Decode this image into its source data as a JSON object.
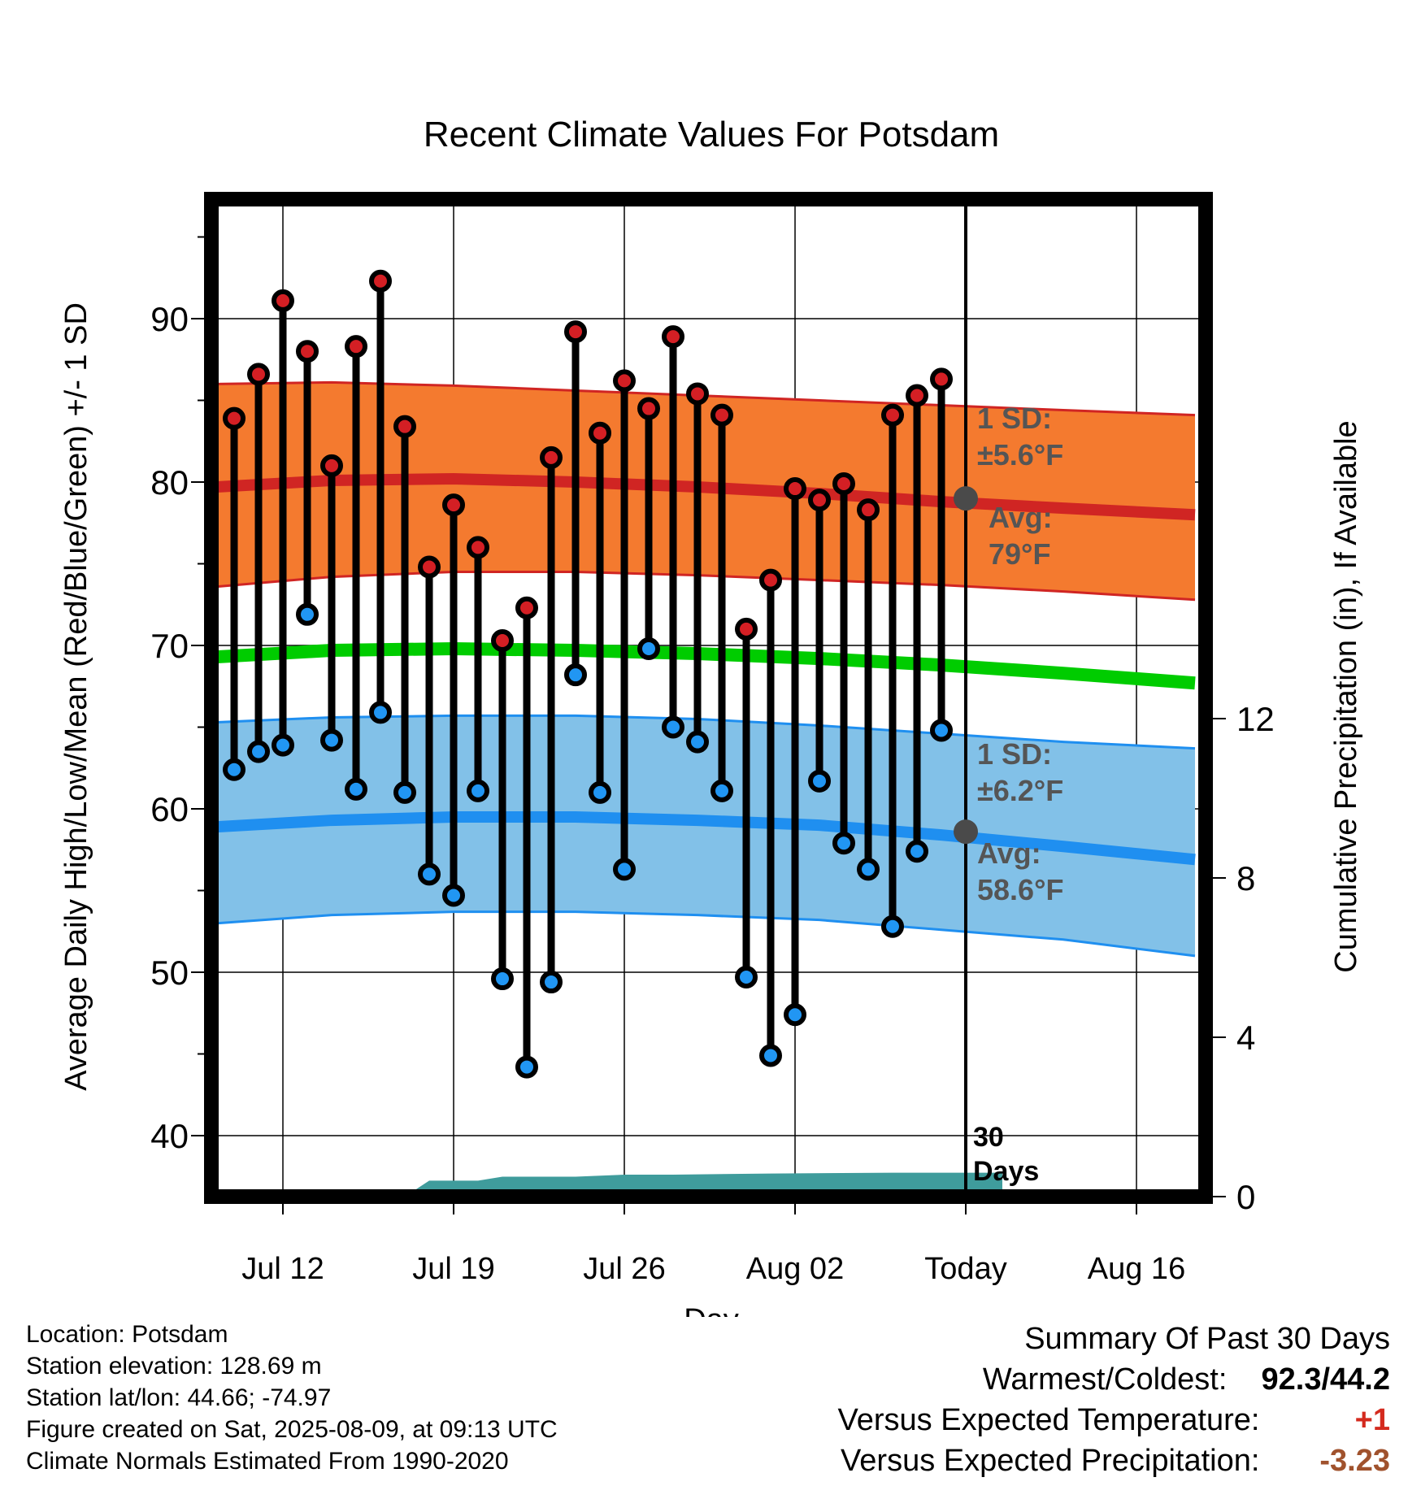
{
  "chart_data": {
    "type": "line",
    "title": "Recent Climate Values For Potsdam",
    "xlabel": "Day",
    "ylabel_left": "Average Daily High/Low/Mean (Red/Blue/Green) +/- 1 SD",
    "ylabel_right": "Cumulative Precipitation (in), If Available",
    "ylim_left": [
      36.6,
      96.8
    ],
    "ylim_right": [
      0,
      18.6
    ],
    "xlim_days": [
      -11.5,
      29.5
    ],
    "yticks_left": [
      "40",
      "50",
      "60",
      "70",
      "80",
      "90"
    ],
    "yticks_right": [
      "0",
      "4",
      "8",
      "12"
    ],
    "xticks": [
      {
        "day": 0,
        "label": "Jul 12"
      },
      {
        "day": 7,
        "label": "Jul 19"
      },
      {
        "day": 14,
        "label": "Jul 26"
      },
      {
        "day": 21,
        "label": "Aug 02"
      },
      {
        "day": 28,
        "label": "Today"
      },
      {
        "day": 35,
        "label": "Aug 16"
      }
    ],
    "today_marker_label_1": "30",
    "today_marker_label_2": "Days",
    "normals": {
      "days": [
        -2.7,
        2,
        7,
        12,
        17,
        22,
        27,
        32,
        37.4
      ],
      "high_mean": [
        79.7,
        80.1,
        80.2,
        80.0,
        79.7,
        79.3,
        78.8,
        78.4,
        78.0
      ],
      "high_upper": [
        86.0,
        86.1,
        85.9,
        85.6,
        85.3,
        85.0,
        84.7,
        84.4,
        84.1
      ],
      "high_lower": [
        73.6,
        74.2,
        74.5,
        74.5,
        74.3,
        74.0,
        73.7,
        73.3,
        72.8
      ],
      "mean": [
        69.3,
        69.7,
        69.8,
        69.7,
        69.5,
        69.2,
        68.8,
        68.3,
        67.7
      ],
      "low_mean": [
        58.9,
        59.3,
        59.5,
        59.5,
        59.3,
        59.0,
        58.4,
        57.7,
        56.9
      ],
      "low_upper": [
        65.3,
        65.6,
        65.7,
        65.7,
        65.5,
        65.1,
        64.6,
        64.1,
        63.7
      ],
      "low_lower": [
        53.0,
        53.5,
        53.7,
        53.7,
        53.5,
        53.2,
        52.6,
        52.0,
        51.0
      ]
    },
    "today_avg_high": 79,
    "today_avg_low": 58.6,
    "annotations": {
      "high_sd_1": "1 SD:",
      "high_sd_2": "±5.6°F",
      "high_avg_1": "Avg:",
      "high_avg_2": "79°F",
      "low_sd_1": "1 SD:",
      "low_sd_2": "±6.2°F",
      "low_avg_1": "Avg:",
      "low_avg_2": "58.6°F"
    },
    "days": [
      -2,
      -1,
      0,
      1,
      2,
      3,
      4,
      5,
      6,
      7,
      8,
      9,
      10,
      11,
      12,
      13,
      14,
      15,
      16,
      17,
      18,
      19,
      20,
      21,
      22,
      23,
      24,
      25,
      26,
      27
    ],
    "highs": [
      83.9,
      86.6,
      91.1,
      88.0,
      81.0,
      88.3,
      92.3,
      83.4,
      74.8,
      78.6,
      76.0,
      70.3,
      72.3,
      81.5,
      89.2,
      83.0,
      86.2,
      84.5,
      88.9,
      85.4,
      84.1,
      71.0,
      74.0,
      79.6,
      78.9,
      79.9,
      78.3,
      84.1,
      85.3,
      86.3
    ],
    "lows": [
      62.4,
      63.5,
      63.9,
      71.9,
      64.2,
      61.2,
      65.9,
      61.0,
      56.0,
      54.7,
      61.1,
      49.6,
      44.2,
      49.4,
      68.2,
      61.0,
      56.3,
      69.8,
      65.0,
      64.1,
      61.1,
      49.7,
      44.9,
      47.4,
      61.7,
      57.9,
      56.3,
      52.8,
      57.4,
      64.8
    ],
    "precip": {
      "days": [
        -11.5,
        5,
        6,
        7,
        8,
        9,
        10,
        12,
        14,
        16,
        20,
        25,
        29.5
      ],
      "values": [
        0,
        0,
        0.4,
        0.4,
        0.4,
        0.5,
        0.5,
        0.5,
        0.55,
        0.55,
        0.58,
        0.6,
        0.6
      ]
    }
  },
  "footer": {
    "location": "Location: Potsdam",
    "elevation": "Station elevation: 128.69 m",
    "latlon": "Station lat/lon: 44.66; -74.97",
    "created": "Figure created on Sat, 2025-08-09, at 09:13 UTC",
    "normals": "Climate Normals Estimated From 1990-2020"
  },
  "summary": {
    "heading": "Summary Of Past 30 Days",
    "warm_cold_label": "Warmest/Coldest:",
    "warm_cold_value": "92.3/44.2",
    "temp_label": "Versus Expected Temperature:",
    "temp_value": "+1",
    "precip_label": "Versus Expected Precipitation:",
    "precip_value": "-3.23"
  },
  "colors": {
    "high_band": "#f47a2f",
    "high_line": "#d02523",
    "low_band": "#82c1e8",
    "low_line": "#1f8ff0",
    "mean_line": "#00cc00",
    "precip": "#3f9c9c",
    "high_dot": "#d41f24",
    "low_dot": "#2196f3",
    "today_dot": "#4a4a4a",
    "annotation": "#555555",
    "temp_value": "#d42a1e",
    "precip_value": "#a0522d"
  }
}
